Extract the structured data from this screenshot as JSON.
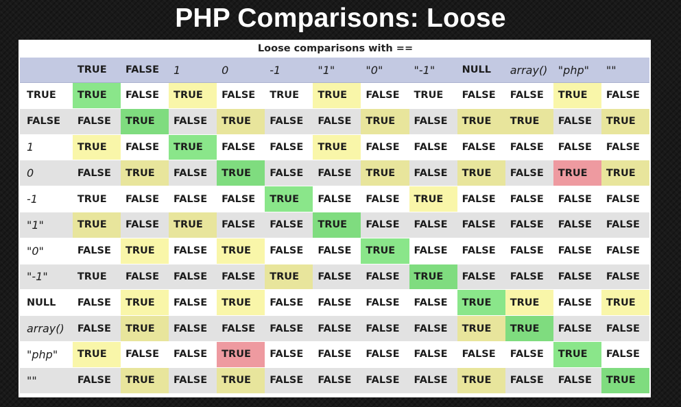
{
  "slide": {
    "title": "PHP Comparisons: Loose"
  },
  "table": {
    "caption": "Loose comparisons with ==",
    "headers": [
      {
        "text": "TRUE",
        "italic": false
      },
      {
        "text": "FALSE",
        "italic": false
      },
      {
        "text": "1",
        "italic": true
      },
      {
        "text": "0",
        "italic": true
      },
      {
        "text": "-1",
        "italic": true
      },
      {
        "text": "\"1\"",
        "italic": true
      },
      {
        "text": "\"0\"",
        "italic": true
      },
      {
        "text": "\"-1\"",
        "italic": true
      },
      {
        "text": "NULL",
        "italic": false
      },
      {
        "text": "array()",
        "italic": true
      },
      {
        "text": "\"php\"",
        "italic": true
      },
      {
        "text": "\"\"",
        "italic": true
      }
    ],
    "rows": [
      {
        "label": "TRUE",
        "italic": false,
        "cells": [
          "TRUE",
          "FALSE",
          "TRUE",
          "FALSE",
          "TRUE",
          "TRUE",
          "FALSE",
          "TRUE",
          "FALSE",
          "FALSE",
          "TRUE",
          "FALSE"
        ],
        "colors": [
          "g",
          "",
          "y",
          "",
          "",
          "y",
          "",
          "",
          "",
          "",
          "y",
          ""
        ]
      },
      {
        "label": "FALSE",
        "italic": false,
        "cells": [
          "FALSE",
          "TRUE",
          "FALSE",
          "TRUE",
          "FALSE",
          "FALSE",
          "TRUE",
          "FALSE",
          "TRUE",
          "TRUE",
          "FALSE",
          "TRUE"
        ],
        "colors": [
          "",
          "g",
          "",
          "y",
          "",
          "",
          "y",
          "",
          "y",
          "y",
          "",
          "y"
        ]
      },
      {
        "label": "1",
        "italic": true,
        "cells": [
          "TRUE",
          "FALSE",
          "TRUE",
          "FALSE",
          "FALSE",
          "TRUE",
          "FALSE",
          "FALSE",
          "FALSE",
          "FALSE",
          "FALSE",
          "FALSE"
        ],
        "colors": [
          "y",
          "",
          "g",
          "",
          "",
          "y",
          "",
          "",
          "",
          "",
          "",
          ""
        ]
      },
      {
        "label": "0",
        "italic": true,
        "cells": [
          "FALSE",
          "TRUE",
          "FALSE",
          "TRUE",
          "FALSE",
          "FALSE",
          "TRUE",
          "FALSE",
          "TRUE",
          "FALSE",
          "TRUE",
          "TRUE"
        ],
        "colors": [
          "",
          "y",
          "",
          "g",
          "",
          "",
          "y",
          "",
          "y",
          "",
          "r",
          "y"
        ]
      },
      {
        "label": "-1",
        "italic": true,
        "cells": [
          "TRUE",
          "FALSE",
          "FALSE",
          "FALSE",
          "TRUE",
          "FALSE",
          "FALSE",
          "TRUE",
          "FALSE",
          "FALSE",
          "FALSE",
          "FALSE"
        ],
        "colors": [
          "",
          "",
          "",
          "",
          "g",
          "",
          "",
          "y",
          "",
          "",
          "",
          ""
        ]
      },
      {
        "label": "\"1\"",
        "italic": true,
        "cells": [
          "TRUE",
          "FALSE",
          "TRUE",
          "FALSE",
          "FALSE",
          "TRUE",
          "FALSE",
          "FALSE",
          "FALSE",
          "FALSE",
          "FALSE",
          "FALSE"
        ],
        "colors": [
          "y",
          "",
          "y",
          "",
          "",
          "g",
          "",
          "",
          "",
          "",
          "",
          ""
        ]
      },
      {
        "label": "\"0\"",
        "italic": true,
        "cells": [
          "FALSE",
          "TRUE",
          "FALSE",
          "TRUE",
          "FALSE",
          "FALSE",
          "TRUE",
          "FALSE",
          "FALSE",
          "FALSE",
          "FALSE",
          "FALSE"
        ],
        "colors": [
          "",
          "y",
          "",
          "y",
          "",
          "",
          "g",
          "",
          "",
          "",
          "",
          ""
        ]
      },
      {
        "label": "\"-1\"",
        "italic": true,
        "cells": [
          "TRUE",
          "FALSE",
          "FALSE",
          "FALSE",
          "TRUE",
          "FALSE",
          "FALSE",
          "TRUE",
          "FALSE",
          "FALSE",
          "FALSE",
          "FALSE"
        ],
        "colors": [
          "",
          "",
          "",
          "",
          "y",
          "",
          "",
          "g",
          "",
          "",
          "",
          ""
        ]
      },
      {
        "label": "NULL",
        "italic": false,
        "cells": [
          "FALSE",
          "TRUE",
          "FALSE",
          "TRUE",
          "FALSE",
          "FALSE",
          "FALSE",
          "FALSE",
          "TRUE",
          "TRUE",
          "FALSE",
          "TRUE"
        ],
        "colors": [
          "",
          "y",
          "",
          "y",
          "",
          "",
          "",
          "",
          "g",
          "y",
          "",
          "y"
        ]
      },
      {
        "label": "array()",
        "italic": true,
        "cells": [
          "FALSE",
          "TRUE",
          "FALSE",
          "FALSE",
          "FALSE",
          "FALSE",
          "FALSE",
          "FALSE",
          "TRUE",
          "TRUE",
          "FALSE",
          "FALSE"
        ],
        "colors": [
          "",
          "y",
          "",
          "",
          "",
          "",
          "",
          "",
          "y",
          "g",
          "",
          ""
        ]
      },
      {
        "label": "\"php\"",
        "italic": true,
        "cells": [
          "TRUE",
          "FALSE",
          "FALSE",
          "TRUE",
          "FALSE",
          "FALSE",
          "FALSE",
          "FALSE",
          "FALSE",
          "FALSE",
          "TRUE",
          "FALSE"
        ],
        "colors": [
          "y",
          "",
          "",
          "r",
          "",
          "",
          "",
          "",
          "",
          "",
          "g",
          ""
        ]
      },
      {
        "label": "\"\"",
        "italic": true,
        "cells": [
          "FALSE",
          "TRUE",
          "FALSE",
          "TRUE",
          "FALSE",
          "FALSE",
          "FALSE",
          "FALSE",
          "TRUE",
          "FALSE",
          "FALSE",
          "TRUE"
        ],
        "colors": [
          "",
          "y",
          "",
          "y",
          "",
          "",
          "",
          "",
          "y",
          "",
          "",
          "g"
        ]
      }
    ]
  },
  "colors": {
    "g": "#8ae68a",
    "y": "#f9f6a9",
    "r": "#ee9aa0",
    "header_bg": "#c3c9e2",
    "row_alt_bg": "#e2e2e2"
  }
}
